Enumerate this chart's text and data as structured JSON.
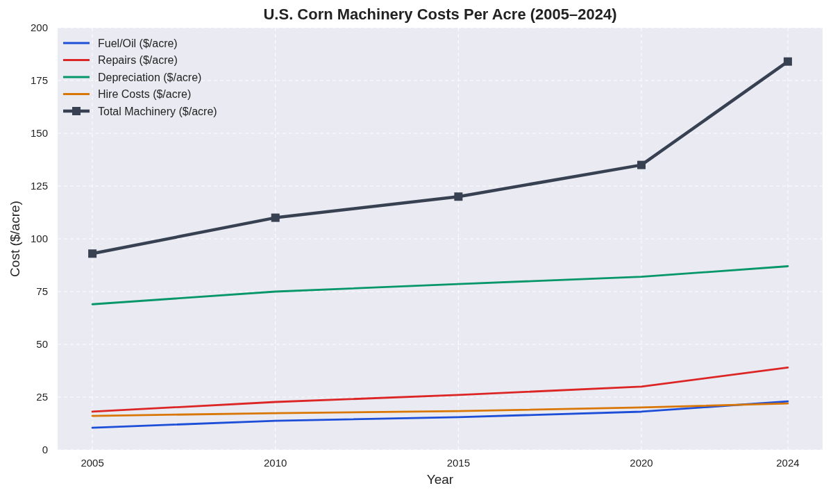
{
  "chart_data": {
    "type": "line",
    "title": "U.S. Corn Machinery Costs Per Acre (2005–2024)",
    "xlabel": "Year",
    "ylabel": "Cost ($/acre)",
    "x": [
      2005,
      2010,
      2015,
      2020,
      2024
    ],
    "series": [
      {
        "name": "Fuel/Oil ($/acre)",
        "color": "#1d4ed8",
        "values": [
          10.5,
          13.8,
          15.5,
          18.1,
          23
        ]
      },
      {
        "name": "Repairs ($/acre)",
        "color": "#dc2626",
        "values": [
          18.1,
          22.7,
          26,
          30,
          39
        ]
      },
      {
        "name": "Depreciation ($/acre)",
        "color": "#059669",
        "values": [
          69,
          75,
          78.6,
          82,
          87
        ]
      },
      {
        "name": "Hire Costs ($/acre)",
        "color": "#d97706",
        "values": [
          16.1,
          17.4,
          18.4,
          20.1,
          22
        ]
      },
      {
        "name": "Total Machinery ($/acre)",
        "color": "#374151",
        "values": [
          93,
          110,
          120,
          135,
          184
        ],
        "marker": "square"
      }
    ],
    "xlim": [
      2004.05,
      2024.95
    ],
    "xticks": [
      2005,
      2010,
      2015,
      2020,
      2024
    ],
    "ylim": [
      0,
      200
    ],
    "yticks": [
      0,
      25,
      50,
      75,
      100,
      125,
      150,
      175,
      200
    ],
    "grid": true,
    "legend": "top left",
    "marker": "none",
    "line_style": "solid"
  }
}
